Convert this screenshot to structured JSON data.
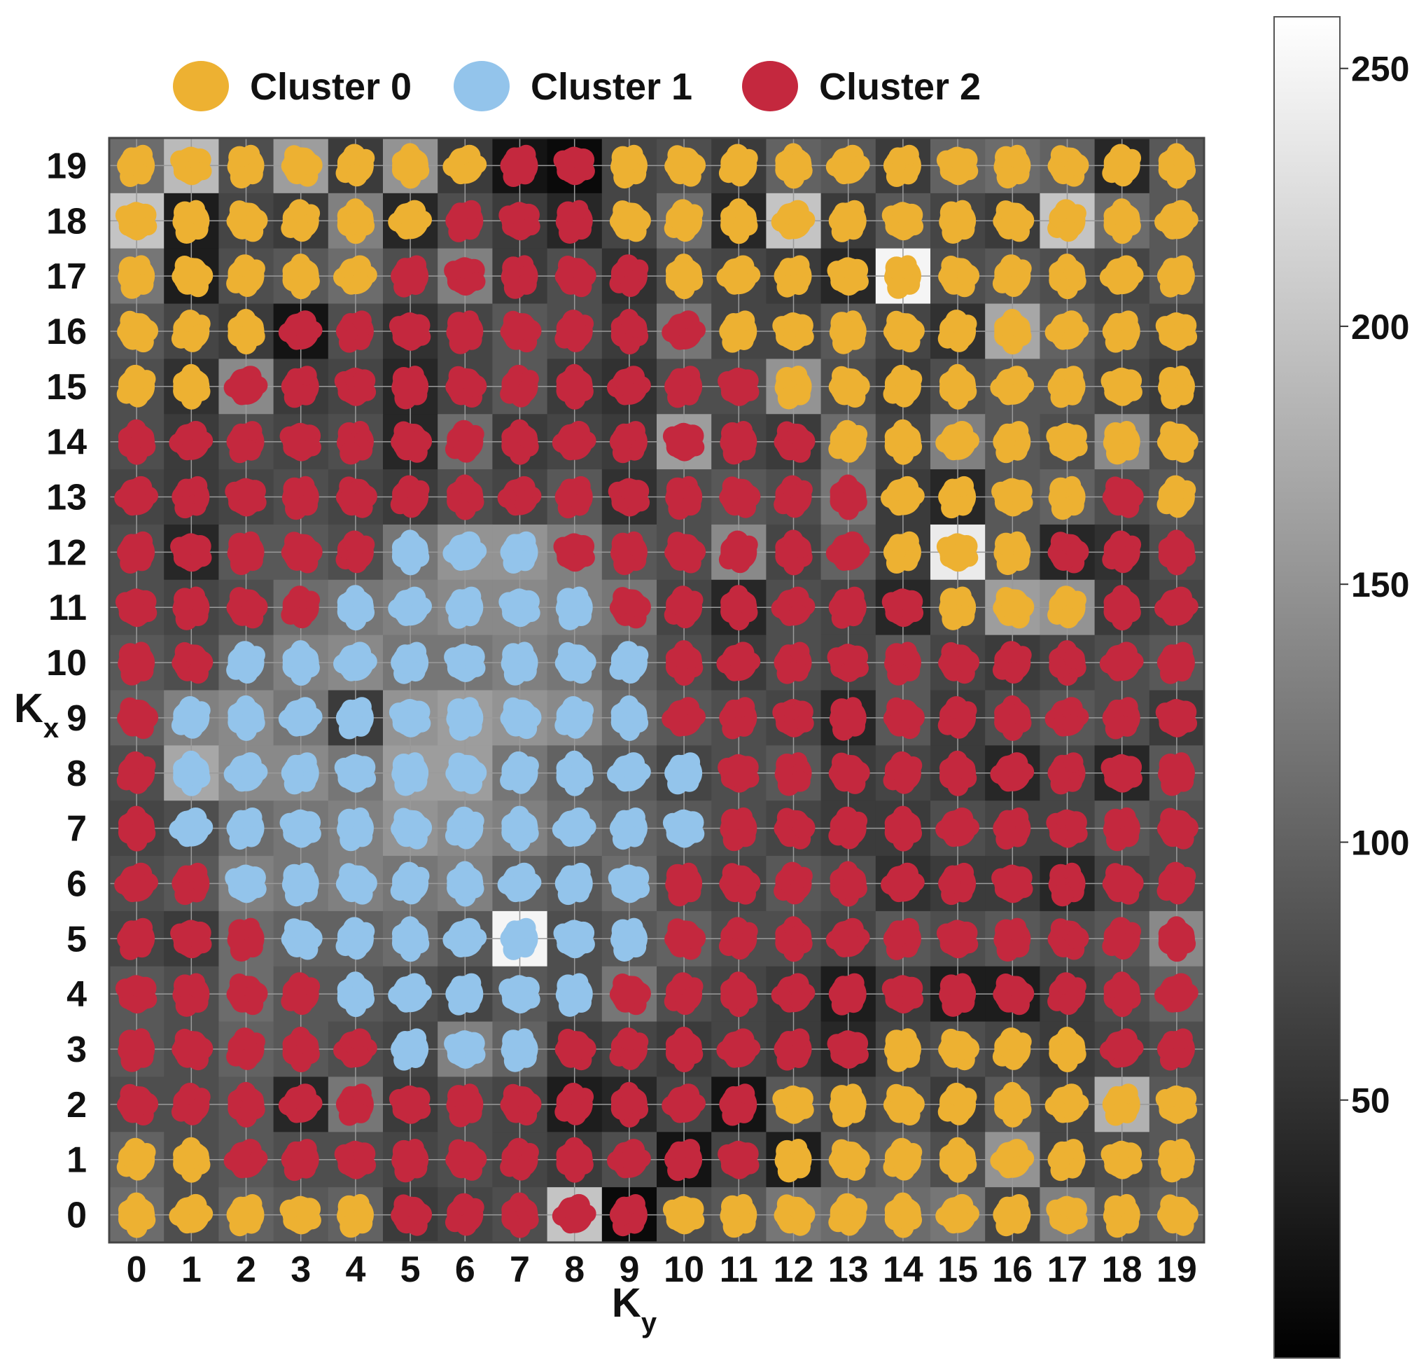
{
  "chart_data": {
    "type": "heatmap",
    "title": "",
    "xlabel": {
      "main": "K",
      "sub": "y"
    },
    "ylabel": {
      "main": "K",
      "sub": "x"
    },
    "x_ticks": [
      "0",
      "1",
      "2",
      "3",
      "4",
      "5",
      "6",
      "7",
      "8",
      "9",
      "10",
      "11",
      "12",
      "13",
      "14",
      "15",
      "16",
      "17",
      "18",
      "19"
    ],
    "y_ticks": [
      "0",
      "1",
      "2",
      "3",
      "4",
      "5",
      "6",
      "7",
      "8",
      "9",
      "10",
      "11",
      "12",
      "13",
      "14",
      "15",
      "16",
      "17",
      "18",
      "19"
    ],
    "grid": true,
    "legend": {
      "placement": "top",
      "entries": [
        {
          "label": "Cluster 0",
          "color": "#EDB132"
        },
        {
          "label": "Cluster 1",
          "color": "#93C4EB"
        },
        {
          "label": "Cluster 2",
          "color": "#C4283E"
        }
      ]
    },
    "colorbar": {
      "cmap": "gray",
      "range": [
        0,
        260
      ],
      "ticks": [
        "50",
        "100",
        "150",
        "200",
        "250"
      ],
      "tick_values": [
        50,
        100,
        150,
        200,
        250
      ]
    },
    "colors": {
      "cluster_0": "#EDB132",
      "cluster_1": "#93C4EB",
      "cluster_2": "#C4283E",
      "grid": "#9a9a9a",
      "text": "#111111"
    },
    "clusters_row_notes": "cluster grid rows indexed by Kx from 19 (top) down to 0 (bottom); columns indexed by Ky 0..19; 0/1/2 = dominant cluster",
    "clusters": [
      [
        0,
        0,
        0,
        0,
        0,
        0,
        0,
        2,
        2,
        0,
        0,
        0,
        0,
        0,
        0,
        0,
        0,
        0,
        0,
        0
      ],
      [
        0,
        0,
        0,
        0,
        0,
        0,
        2,
        2,
        2,
        0,
        0,
        0,
        0,
        0,
        0,
        0,
        0,
        0,
        0,
        0
      ],
      [
        0,
        0,
        0,
        0,
        0,
        2,
        2,
        2,
        2,
        2,
        0,
        0,
        0,
        0,
        0,
        0,
        0,
        0,
        0,
        0
      ],
      [
        0,
        0,
        0,
        2,
        2,
        2,
        2,
        2,
        2,
        2,
        2,
        0,
        0,
        0,
        0,
        0,
        0,
        0,
        0,
        0
      ],
      [
        0,
        0,
        2,
        2,
        2,
        2,
        2,
        2,
        2,
        2,
        2,
        2,
        0,
        0,
        0,
        0,
        0,
        0,
        0,
        0
      ],
      [
        2,
        2,
        2,
        2,
        2,
        2,
        2,
        2,
        2,
        2,
        2,
        2,
        2,
        0,
        0,
        0,
        0,
        0,
        0,
        0
      ],
      [
        2,
        2,
        2,
        2,
        2,
        2,
        2,
        2,
        2,
        2,
        2,
        2,
        2,
        2,
        0,
        0,
        0,
        0,
        2,
        0
      ],
      [
        2,
        2,
        2,
        2,
        2,
        1,
        1,
        1,
        2,
        2,
        2,
        2,
        2,
        2,
        0,
        0,
        0,
        2,
        2,
        2
      ],
      [
        2,
        2,
        2,
        2,
        1,
        1,
        1,
        1,
        1,
        2,
        2,
        2,
        2,
        2,
        2,
        0,
        0,
        0,
        2,
        2
      ],
      [
        2,
        2,
        1,
        1,
        1,
        1,
        1,
        1,
        1,
        1,
        2,
        2,
        2,
        2,
        2,
        2,
        2,
        2,
        2,
        2
      ],
      [
        2,
        1,
        1,
        1,
        1,
        1,
        1,
        1,
        1,
        1,
        2,
        2,
        2,
        2,
        2,
        2,
        2,
        2,
        2,
        2
      ],
      [
        2,
        1,
        1,
        1,
        1,
        1,
        1,
        1,
        1,
        1,
        1,
        2,
        2,
        2,
        2,
        2,
        2,
        2,
        2,
        2
      ],
      [
        2,
        1,
        1,
        1,
        1,
        1,
        1,
        1,
        1,
        1,
        1,
        2,
        2,
        2,
        2,
        2,
        2,
        2,
        2,
        2
      ],
      [
        2,
        2,
        1,
        1,
        1,
        1,
        1,
        1,
        1,
        1,
        2,
        2,
        2,
        2,
        2,
        2,
        2,
        2,
        2,
        2
      ],
      [
        2,
        2,
        2,
        1,
        1,
        1,
        1,
        1,
        1,
        1,
        2,
        2,
        2,
        2,
        2,
        2,
        2,
        2,
        2,
        2
      ],
      [
        2,
        2,
        2,
        2,
        1,
        1,
        1,
        1,
        1,
        2,
        2,
        2,
        2,
        2,
        2,
        2,
        2,
        2,
        2,
        2
      ],
      [
        2,
        2,
        2,
        2,
        2,
        1,
        1,
        1,
        2,
        2,
        2,
        2,
        2,
        2,
        0,
        0,
        0,
        0,
        2,
        2
      ],
      [
        2,
        2,
        2,
        2,
        2,
        2,
        2,
        2,
        2,
        2,
        2,
        2,
        0,
        0,
        0,
        0,
        0,
        0,
        0,
        0
      ],
      [
        0,
        0,
        2,
        2,
        2,
        2,
        2,
        2,
        2,
        2,
        2,
        2,
        0,
        0,
        0,
        0,
        0,
        0,
        0,
        0
      ],
      [
        0,
        0,
        0,
        0,
        0,
        2,
        2,
        2,
        2,
        2,
        0,
        0,
        0,
        0,
        0,
        0,
        0,
        0,
        0,
        0
      ]
    ],
    "values_row_notes": "grayscale cell intensities in colorbar units, rows Kx 19 (top) to 0 (bottom), columns Ky 0..19",
    "values": [
      [
        110,
        190,
        80,
        160,
        60,
        150,
        60,
        20,
        10,
        70,
        80,
        60,
        100,
        90,
        60,
        100,
        110,
        100,
        40,
        90
      ],
      [
        200,
        30,
        70,
        60,
        130,
        40,
        80,
        60,
        40,
        70,
        110,
        40,
        200,
        60,
        90,
        70,
        60,
        200,
        110,
        90
      ],
      [
        120,
        30,
        80,
        90,
        110,
        80,
        130,
        60,
        80,
        50,
        80,
        70,
        60,
        40,
        250,
        80,
        90,
        80,
        70,
        90
      ],
      [
        90,
        70,
        60,
        20,
        80,
        50,
        70,
        90,
        80,
        60,
        120,
        70,
        70,
        90,
        70,
        50,
        170,
        100,
        80,
        70
      ],
      [
        80,
        50,
        140,
        60,
        70,
        40,
        70,
        90,
        60,
        50,
        80,
        80,
        150,
        80,
        60,
        80,
        90,
        90,
        70,
        60
      ],
      [
        80,
        60,
        80,
        70,
        80,
        40,
        110,
        60,
        70,
        60,
        160,
        70,
        60,
        110,
        70,
        130,
        90,
        80,
        140,
        80
      ],
      [
        70,
        60,
        70,
        80,
        70,
        60,
        80,
        70,
        90,
        50,
        80,
        90,
        80,
        120,
        60,
        40,
        90,
        100,
        80,
        90
      ],
      [
        80,
        40,
        90,
        90,
        80,
        120,
        150,
        150,
        130,
        90,
        80,
        140,
        70,
        100,
        60,
        240,
        90,
        40,
        50,
        80
      ],
      [
        80,
        70,
        80,
        110,
        120,
        130,
        140,
        140,
        130,
        120,
        70,
        40,
        80,
        70,
        40,
        80,
        160,
        150,
        60,
        70
      ],
      [
        90,
        80,
        110,
        130,
        140,
        120,
        120,
        130,
        120,
        100,
        80,
        60,
        80,
        70,
        90,
        70,
        60,
        70,
        80,
        90
      ],
      [
        100,
        130,
        140,
        120,
        60,
        150,
        160,
        150,
        140,
        110,
        90,
        80,
        70,
        40,
        90,
        60,
        80,
        90,
        80,
        60
      ],
      [
        80,
        170,
        140,
        140,
        120,
        160,
        160,
        120,
        100,
        90,
        70,
        80,
        90,
        60,
        70,
        60,
        40,
        70,
        40,
        90
      ],
      [
        70,
        80,
        110,
        120,
        130,
        150,
        140,
        130,
        110,
        100,
        90,
        80,
        70,
        60,
        60,
        80,
        70,
        70,
        90,
        80
      ],
      [
        80,
        90,
        130,
        120,
        130,
        120,
        130,
        100,
        90,
        110,
        80,
        70,
        90,
        80,
        50,
        60,
        60,
        40,
        70,
        80
      ],
      [
        70,
        60,
        110,
        100,
        100,
        110,
        90,
        250,
        80,
        90,
        100,
        80,
        80,
        70,
        90,
        80,
        90,
        80,
        90,
        140
      ],
      [
        90,
        80,
        110,
        90,
        90,
        80,
        70,
        90,
        80,
        120,
        80,
        70,
        60,
        30,
        60,
        30,
        30,
        60,
        80,
        100
      ],
      [
        90,
        80,
        100,
        90,
        80,
        70,
        130,
        100,
        60,
        70,
        60,
        70,
        60,
        40,
        70,
        80,
        70,
        60,
        70,
        80
      ],
      [
        80,
        80,
        90,
        40,
        120,
        60,
        80,
        70,
        30,
        40,
        70,
        20,
        90,
        70,
        80,
        60,
        90,
        70,
        180,
        90
      ],
      [
        100,
        80,
        90,
        80,
        80,
        70,
        80,
        70,
        60,
        80,
        20,
        70,
        30,
        90,
        100,
        80,
        150,
        70,
        80,
        90
      ],
      [
        110,
        80,
        100,
        90,
        100,
        60,
        70,
        80,
        200,
        10,
        80,
        90,
        120,
        110,
        110,
        120,
        70,
        130,
        90,
        100
      ]
    ]
  }
}
